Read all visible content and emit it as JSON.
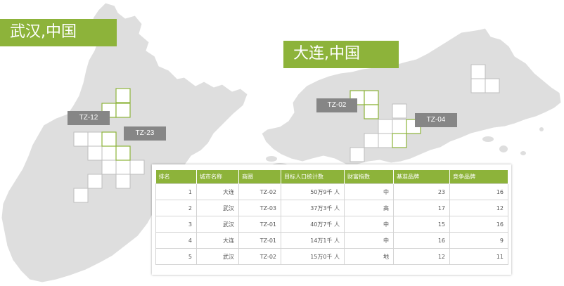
{
  "cities": {
    "wuhan_banner": "武汉,中国",
    "dalian_banner": "大连,中国"
  },
  "zone_tags": {
    "tz12": "TZ-12",
    "tz23": "TZ-23",
    "tz02": "TZ-02",
    "tz04": "TZ-04"
  },
  "table": {
    "headers": [
      "排名",
      "城市名称",
      "商圈",
      "目标人口统计数",
      "财富指数",
      "基准品牌",
      "竞争品牌"
    ],
    "rows": [
      [
        "1",
        "大连",
        "TZ-02",
        "50万9千 人",
        "中",
        "23",
        "16"
      ],
      [
        "2",
        "武汉",
        "TZ-03",
        "37万3千 人",
        "高",
        "17",
        "12"
      ],
      [
        "3",
        "武汉",
        "TZ-01",
        "40万7千 人",
        "中",
        "15",
        "16"
      ],
      [
        "4",
        "大连",
        "TZ-01",
        "14万1千 人",
        "中",
        "16",
        "9"
      ],
      [
        "5",
        "武汉",
        "TZ-02",
        "15万0千 人",
        "地",
        "12",
        "11"
      ]
    ]
  },
  "colors": {
    "accent": "#8db33a",
    "land": "#dedede",
    "tag": "#868686"
  }
}
